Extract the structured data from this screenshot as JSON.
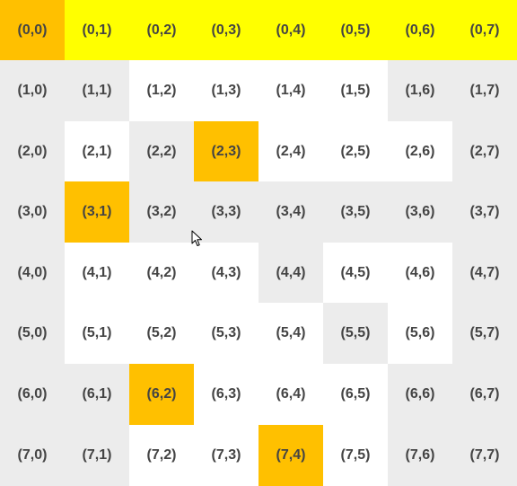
{
  "colors": {
    "white": "#ffffff",
    "gray": "#ececec",
    "yellow": "#ffff00",
    "orange": "#ffc000",
    "text": "#444444"
  },
  "grid": {
    "rows": [
      [
        "(0,0)",
        "(0,1)",
        "(0,2)",
        "(0,3)",
        "(0,4)",
        "(0,5)",
        "(0,6)",
        "(0,7)"
      ],
      [
        "(1,0)",
        "(1,1)",
        "(1,2)",
        "(1,3)",
        "(1,4)",
        "(1,5)",
        "(1,6)",
        "(1,7)"
      ],
      [
        "(2,0)",
        "(2,1)",
        "(2,2)",
        "(2,3)",
        "(2,4)",
        "(2,5)",
        "(2,6)",
        "(2,7)"
      ],
      [
        "(3,0)",
        "(3,1)",
        "(3,2)",
        "(3,3)",
        "(3,4)",
        "(3,5)",
        "(3,6)",
        "(3,7)"
      ],
      [
        "(4,0)",
        "(4,1)",
        "(4,2)",
        "(4,3)",
        "(4,4)",
        "(4,5)",
        "(4,6)",
        "(4,7)"
      ],
      [
        "(5,0)",
        "(5,1)",
        "(5,2)",
        "(5,3)",
        "(5,4)",
        "(5,5)",
        "(5,6)",
        "(5,7)"
      ],
      [
        "(6,0)",
        "(6,1)",
        "(6,2)",
        "(6,3)",
        "(6,4)",
        "(6,5)",
        "(6,6)",
        "(6,7)"
      ],
      [
        "(7,0)",
        "(7,1)",
        "(7,2)",
        "(7,3)",
        "(7,4)",
        "(7,5)",
        "(7,6)",
        "(7,7)"
      ]
    ],
    "fills": [
      [
        "orange",
        "yellow",
        "yellow",
        "yellow",
        "yellow",
        "yellow",
        "yellow",
        "yellow"
      ],
      [
        "gray",
        "gray",
        "white",
        "white",
        "white",
        "white",
        "gray",
        "gray"
      ],
      [
        "gray",
        "white",
        "gray",
        "orange",
        "white",
        "white",
        "white",
        "gray"
      ],
      [
        "gray",
        "orange",
        "gray",
        "gray",
        "gray",
        "gray",
        "gray",
        "gray"
      ],
      [
        "gray",
        "white",
        "white",
        "white",
        "gray",
        "white",
        "white",
        "gray"
      ],
      [
        "gray",
        "white",
        "white",
        "white",
        "white",
        "gray",
        "white",
        "gray"
      ],
      [
        "gray",
        "gray",
        "orange",
        "white",
        "white",
        "white",
        "gray",
        "gray"
      ],
      [
        "gray",
        "gray",
        "white",
        "white",
        "orange",
        "white",
        "gray",
        "gray"
      ]
    ]
  },
  "cursor": {
    "icon": "mouse-pointer-icon"
  }
}
